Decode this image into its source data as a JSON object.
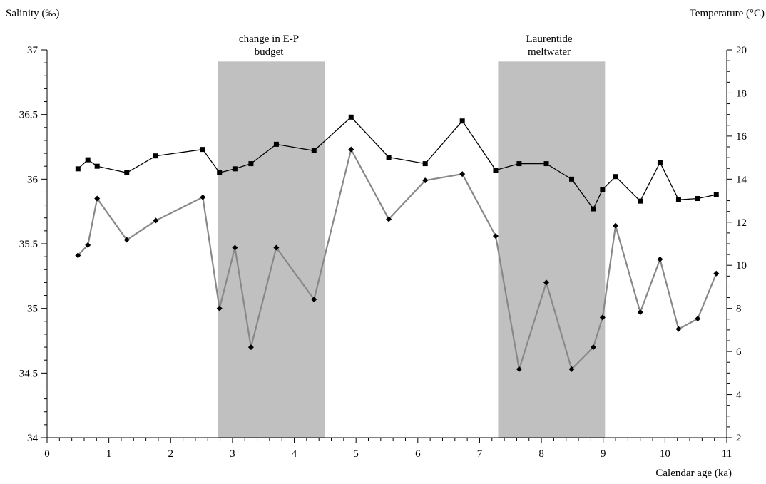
{
  "chart_data": {
    "type": "line",
    "left_axis_label": "Salinity (‰)",
    "right_axis_label": "Temperature (°C)",
    "xlabel": "Calendar age (ka)",
    "xlim": [
      0,
      11
    ],
    "ylim_left": [
      34,
      37
    ],
    "ylim_right": [
      2,
      20
    ],
    "x_ticks": [
      "0",
      "1",
      "2",
      "3",
      "4",
      "5",
      "6",
      "7",
      "8",
      "9",
      "10",
      "11"
    ],
    "left_ticks": [
      "34",
      "34.5",
      "35",
      "35.5",
      "36",
      "36.5",
      "37"
    ],
    "right_ticks": [
      "2",
      "4",
      "6",
      "8",
      "10",
      "12",
      "14",
      "16",
      "18",
      "20"
    ],
    "bands": [
      {
        "label_line1": "change in E-P",
        "label_line2": "budget",
        "x_start": 2.76,
        "x_end": 4.5,
        "y_top": 36.91
      },
      {
        "label_line1": "Laurentide",
        "label_line2": "meltwater",
        "x_start": 7.3,
        "x_end": 9.03,
        "y_top": 36.91
      }
    ],
    "series": [
      {
        "marker": "square",
        "color": "#000000",
        "axis": "left",
        "x": [
          0.5,
          0.66,
          0.81,
          1.29,
          1.76,
          2.52,
          2.79,
          3.04,
          3.3,
          3.71,
          4.32,
          4.92,
          5.53,
          6.12,
          6.72,
          7.26,
          7.64,
          8.08,
          8.49,
          8.84,
          8.99,
          9.2,
          9.6,
          9.92,
          10.22,
          10.53,
          10.83
        ],
        "values": [
          36.08,
          36.15,
          36.1,
          36.05,
          36.18,
          36.23,
          36.05,
          36.08,
          36.12,
          36.27,
          36.22,
          36.48,
          36.17,
          36.12,
          36.45,
          36.07,
          36.12,
          36.12,
          36.0,
          35.77,
          35.92,
          36.02,
          35.83,
          36.13,
          35.84,
          35.85,
          35.88
        ]
      },
      {
        "marker": "diamond",
        "color": "#888888",
        "axis": "left",
        "x": [
          0.5,
          0.66,
          0.81,
          1.29,
          1.76,
          2.52,
          2.79,
          3.04,
          3.3,
          3.71,
          4.32,
          4.92,
          5.53,
          6.12,
          6.72,
          7.26,
          7.64,
          8.08,
          8.49,
          8.84,
          8.99,
          9.2,
          9.6,
          9.92,
          10.22,
          10.53,
          10.83
        ],
        "values": [
          35.41,
          35.49,
          35.85,
          35.53,
          35.68,
          35.86,
          35.0,
          35.47,
          34.7,
          35.47,
          35.07,
          36.23,
          35.69,
          35.99,
          36.04,
          35.56,
          34.53,
          35.2,
          34.53,
          34.7,
          34.93,
          35.64,
          34.97,
          35.38,
          34.84,
          34.92,
          35.27
        ]
      }
    ]
  }
}
